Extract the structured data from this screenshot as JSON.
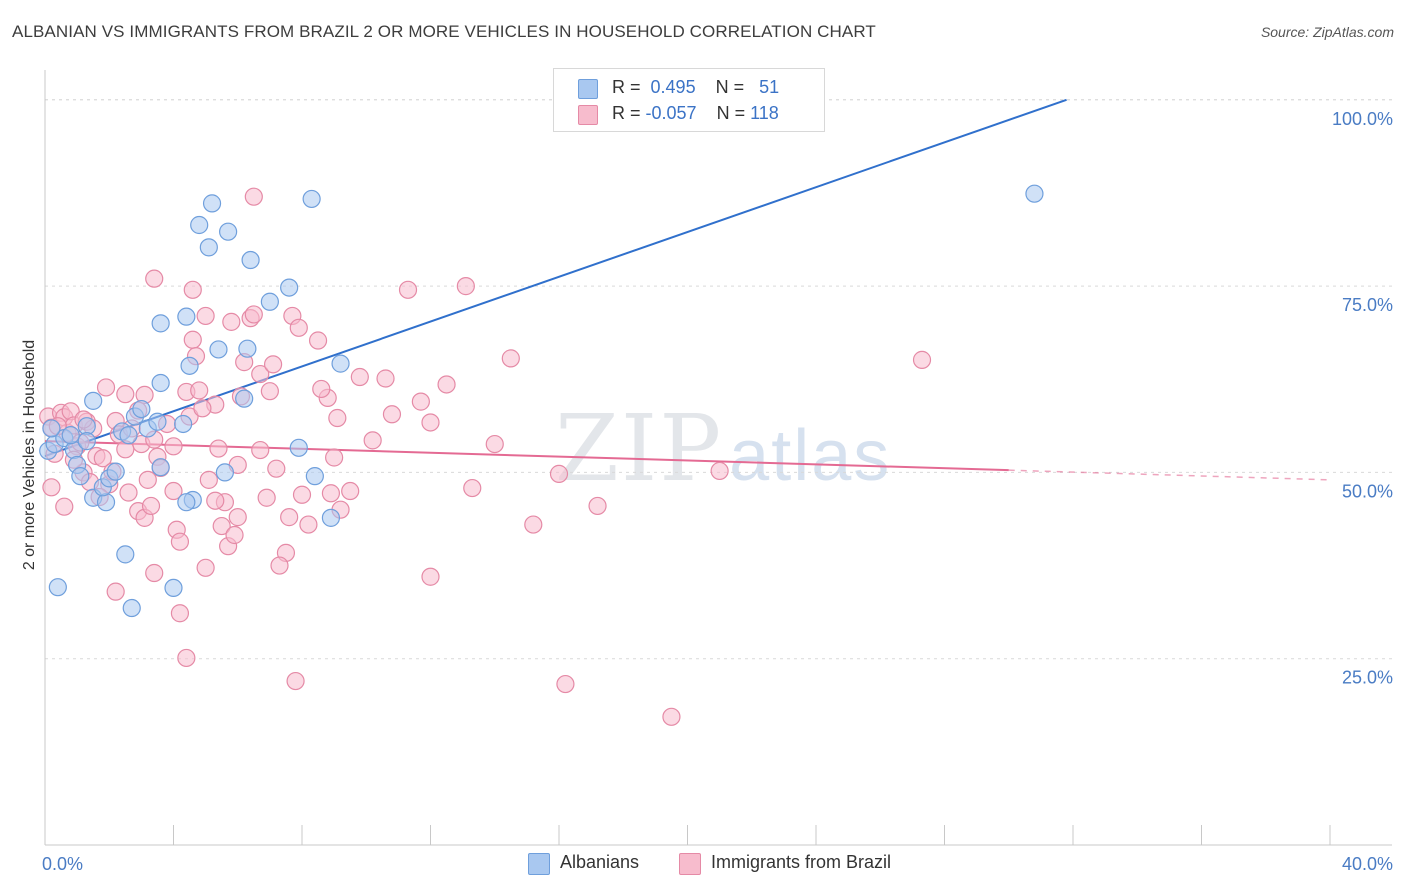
{
  "title": "ALBANIAN VS IMMIGRANTS FROM BRAZIL 2 OR MORE VEHICLES IN HOUSEHOLD CORRELATION CHART",
  "source": "Source: ZipAtlas.com",
  "watermark": {
    "zip": "ZIP",
    "atlas": "atlas"
  },
  "legend": {
    "rows": [
      {
        "r_label": "R =",
        "r_value": "0.495",
        "n_label": "N =",
        "n_value": "51",
        "color": "#a9c8f0",
        "border": "#6f9fdc"
      },
      {
        "r_label": "R =",
        "r_value": "-0.057",
        "n_label": "N =",
        "n_value": "118",
        "color": "#f7bccd",
        "border": "#e58aa6"
      }
    ]
  },
  "bottom_legend": [
    {
      "label": "Albanians",
      "color": "#a9c8f0",
      "border": "#6f9fdc"
    },
    {
      "label": "Immigrants from Brazil",
      "color": "#f7bccd",
      "border": "#e58aa6"
    }
  ],
  "chart_data": {
    "type": "scatter",
    "title": "ALBANIAN VS IMMIGRANTS FROM BRAZIL 2 OR MORE VEHICLES IN HOUSEHOLD CORRELATION CHART",
    "xlabel": "",
    "ylabel": "2 or more Vehicles in Household",
    "xlim": [
      0,
      40
    ],
    "ylim": [
      0,
      104
    ],
    "x_tick_labels": [
      {
        "value": 0,
        "label": "0.0%"
      },
      {
        "value": 40,
        "label": "40.0%"
      }
    ],
    "y_tick_labels": [
      {
        "value": 100,
        "label": "100.0%"
      },
      {
        "value": 75,
        "label": "75.0%"
      },
      {
        "value": 50,
        "label": "50.0%"
      },
      {
        "value": 25,
        "label": "25.0%"
      }
    ],
    "x_minor_ticks": [
      0,
      4,
      8,
      12,
      16,
      20,
      24,
      28,
      32,
      36,
      40
    ],
    "series": [
      {
        "name": "Albanians",
        "color": "#6f9fdc",
        "fill": "#a9c8f0",
        "trend": {
          "x0": 0,
          "y0": 52.2,
          "x1": 31.8,
          "y1": 100.0,
          "color": "#3070cc",
          "dashed_after": null
        },
        "points": [
          [
            0.1,
            52.9
          ],
          [
            0.3,
            53.8
          ],
          [
            0.6,
            54.6
          ],
          [
            0.9,
            53.0
          ],
          [
            0.8,
            55.0
          ],
          [
            1.0,
            51.0
          ],
          [
            1.3,
            56.2
          ],
          [
            1.1,
            49.5
          ],
          [
            1.5,
            46.6
          ],
          [
            1.9,
            46.0
          ],
          [
            1.8,
            48.0
          ],
          [
            2.0,
            49.2
          ],
          [
            2.4,
            55.5
          ],
          [
            2.6,
            55.0
          ],
          [
            2.8,
            57.5
          ],
          [
            3.2,
            55.9
          ],
          [
            3.5,
            56.8
          ],
          [
            3.6,
            50.7
          ],
          [
            3.6,
            62.0
          ],
          [
            3.6,
            70.0
          ],
          [
            4.3,
            56.5
          ],
          [
            4.5,
            64.3
          ],
          [
            4.4,
            70.9
          ],
          [
            4.6,
            46.3
          ],
          [
            4.4,
            46.0
          ],
          [
            5.4,
            66.5
          ],
          [
            5.6,
            50.0
          ],
          [
            6.2,
            59.9
          ],
          [
            6.3,
            66.6
          ],
          [
            7.0,
            72.9
          ],
          [
            6.4,
            78.5
          ],
          [
            7.6,
            74.8
          ],
          [
            5.7,
            82.3
          ],
          [
            5.1,
            80.2
          ],
          [
            4.8,
            83.2
          ],
          [
            5.2,
            86.1
          ],
          [
            8.3,
            86.7
          ],
          [
            9.2,
            64.6
          ],
          [
            7.9,
            53.3
          ],
          [
            8.4,
            49.5
          ],
          [
            8.9,
            43.9
          ],
          [
            3.0,
            58.5
          ],
          [
            1.5,
            59.6
          ],
          [
            1.3,
            54.2
          ],
          [
            2.2,
            50.1
          ],
          [
            2.5,
            39.0
          ],
          [
            2.7,
            31.8
          ],
          [
            4.0,
            34.5
          ],
          [
            0.4,
            34.6
          ],
          [
            30.8,
            87.4
          ],
          [
            0.2,
            55.9
          ]
        ]
      },
      {
        "name": "Immigrants from Brazil",
        "color": "#e58aa6",
        "fill": "#f7bccd",
        "trend": {
          "x0": 0,
          "y0": 54.2,
          "x1": 30.0,
          "y1": 50.3,
          "color": "#e46a93",
          "dashed_after": 40
        },
        "points": [
          [
            0.1,
            57.5
          ],
          [
            0.2,
            56.0
          ],
          [
            0.3,
            52.5
          ],
          [
            0.2,
            48.0
          ],
          [
            0.5,
            58.0
          ],
          [
            0.6,
            57.4
          ],
          [
            0.7,
            55.3
          ],
          [
            0.8,
            58.2
          ],
          [
            0.9,
            56.3
          ],
          [
            1.0,
            53.5
          ],
          [
            1.1,
            54.0
          ],
          [
            1.2,
            50.0
          ],
          [
            1.3,
            56.8
          ],
          [
            1.5,
            55.9
          ],
          [
            1.6,
            52.2
          ],
          [
            1.8,
            51.9
          ],
          [
            2.0,
            48.4
          ],
          [
            2.1,
            50.1
          ],
          [
            2.2,
            56.9
          ],
          [
            2.3,
            55.1
          ],
          [
            2.5,
            53.1
          ],
          [
            2.7,
            55.9
          ],
          [
            2.9,
            44.8
          ],
          [
            3.0,
            53.8
          ],
          [
            3.1,
            43.9
          ],
          [
            3.2,
            49.0
          ],
          [
            3.4,
            54.4
          ],
          [
            3.5,
            52.1
          ],
          [
            3.8,
            56.5
          ],
          [
            4.0,
            47.5
          ],
          [
            4.1,
            42.3
          ],
          [
            4.2,
            40.7
          ],
          [
            4.4,
            60.8
          ],
          [
            4.5,
            57.5
          ],
          [
            4.6,
            67.8
          ],
          [
            4.7,
            65.6
          ],
          [
            4.8,
            61.0
          ],
          [
            5.0,
            71.0
          ],
          [
            5.1,
            49.0
          ],
          [
            5.3,
            59.1
          ],
          [
            5.4,
            53.2
          ],
          [
            5.5,
            42.8
          ],
          [
            5.7,
            40.1
          ],
          [
            5.9,
            41.6
          ],
          [
            6.0,
            51.0
          ],
          [
            6.2,
            64.8
          ],
          [
            6.4,
            70.7
          ],
          [
            6.5,
            71.2
          ],
          [
            6.7,
            63.2
          ],
          [
            6.9,
            46.6
          ],
          [
            7.1,
            64.5
          ],
          [
            7.2,
            50.5
          ],
          [
            7.5,
            39.2
          ],
          [
            7.7,
            71.0
          ],
          [
            7.9,
            69.4
          ],
          [
            8.0,
            47.0
          ],
          [
            8.2,
            43.0
          ],
          [
            8.5,
            67.7
          ],
          [
            8.8,
            60.0
          ],
          [
            9.0,
            52.0
          ],
          [
            9.2,
            45.0
          ],
          [
            9.5,
            47.5
          ],
          [
            9.8,
            62.8
          ],
          [
            10.2,
            54.3
          ],
          [
            10.8,
            57.8
          ],
          [
            11.3,
            74.5
          ],
          [
            11.7,
            59.5
          ],
          [
            12.0,
            56.7
          ],
          [
            12.5,
            61.8
          ],
          [
            13.1,
            75.0
          ],
          [
            13.3,
            47.9
          ],
          [
            14.0,
            53.8
          ],
          [
            14.5,
            65.3
          ],
          [
            15.2,
            43.0
          ],
          [
            16.0,
            49.8
          ],
          [
            17.2,
            45.5
          ],
          [
            12.0,
            36.0
          ],
          [
            16.2,
            21.6
          ],
          [
            19.5,
            17.2
          ],
          [
            21.0,
            50.2
          ],
          [
            27.3,
            65.1
          ],
          [
            6.5,
            87.0
          ],
          [
            3.4,
            76.0
          ],
          [
            4.6,
            74.5
          ],
          [
            5.8,
            70.2
          ],
          [
            2.5,
            60.5
          ],
          [
            3.1,
            60.4
          ],
          [
            1.9,
            61.4
          ],
          [
            1.2,
            57.1
          ],
          [
            0.6,
            45.4
          ],
          [
            1.7,
            46.7
          ],
          [
            2.2,
            34.0
          ],
          [
            3.4,
            36.5
          ],
          [
            4.2,
            31.1
          ],
          [
            4.4,
            25.1
          ],
          [
            7.8,
            22.0
          ],
          [
            5.0,
            37.2
          ],
          [
            5.6,
            46.0
          ],
          [
            6.7,
            53.0
          ],
          [
            7.3,
            37.5
          ],
          [
            7.6,
            44.0
          ],
          [
            2.9,
            58.3
          ],
          [
            3.6,
            50.6
          ],
          [
            1.4,
            48.7
          ],
          [
            6.1,
            60.2
          ],
          [
            4.9,
            58.6
          ],
          [
            8.9,
            47.2
          ],
          [
            10.6,
            62.6
          ],
          [
            7.0,
            60.9
          ],
          [
            4.0,
            53.5
          ],
          [
            2.6,
            47.3
          ],
          [
            3.3,
            45.5
          ],
          [
            5.3,
            46.2
          ],
          [
            6.0,
            44.0
          ],
          [
            8.6,
            61.2
          ],
          [
            9.1,
            57.3
          ],
          [
            0.4,
            56.2
          ],
          [
            0.9,
            51.7
          ]
        ]
      }
    ]
  }
}
